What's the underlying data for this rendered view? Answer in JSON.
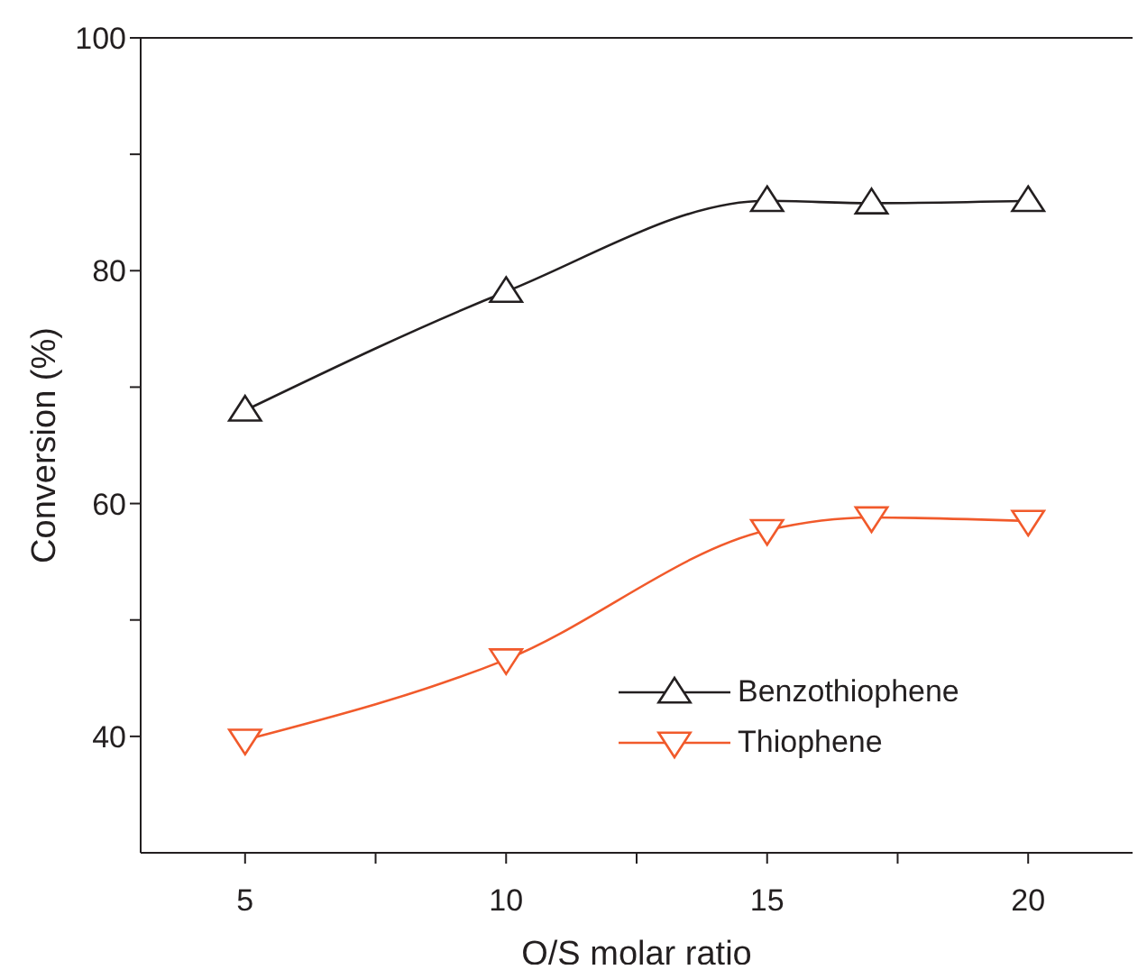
{
  "chart_data": {
    "type": "line",
    "xlabel": "O/S molar ratio",
    "ylabel": "Conversion (%)",
    "x": [
      5,
      10,
      15,
      17,
      20
    ],
    "series": [
      {
        "name": "Benzothiophene",
        "color": "#231f20",
        "marker": "triangle",
        "values": [
          68,
          78.2,
          86,
          85.8,
          86
        ]
      },
      {
        "name": "Thiophene",
        "color": "#f15a2b",
        "marker": "triangle-down",
        "values": [
          39.7,
          46.6,
          57.7,
          58.8,
          58.5
        ]
      }
    ],
    "xlim": [
      3,
      22
    ],
    "xticks": [
      5,
      {
        "value": 7.5,
        "label": null
      },
      10,
      {
        "value": 12.5,
        "label": null
      },
      15,
      {
        "value": 17.5,
        "label": null
      },
      20
    ],
    "ylim": [
      30,
      100
    ],
    "yticks": [
      40,
      {
        "value": 50,
        "label": null
      },
      60,
      {
        "value": 70,
        "label": null
      },
      80,
      {
        "value": 90,
        "label": null
      },
      100
    ],
    "grid": false,
    "legend": "right"
  }
}
